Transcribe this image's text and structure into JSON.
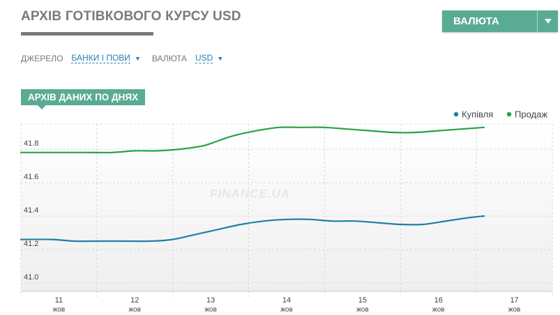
{
  "header": {
    "title": "АРХІВ ГОТІВКОВОГО КУРСУ USD",
    "currency_button": "ВАЛЮТА",
    "accent_color": "#5aab94"
  },
  "filters": {
    "source_label": "ДЖЕРЕЛО",
    "source_value": "БАНКИ І ПОВИ",
    "currency_label": "ВАЛЮТА",
    "currency_value": "USD"
  },
  "section_tag": "АРХІВ ДАНИХ ПО ДНЯХ",
  "watermark": "FINANCE.UA",
  "chart_data": {
    "type": "line",
    "x_labels": [
      {
        "day": "11",
        "month": "жов"
      },
      {
        "day": "12",
        "month": "жов"
      },
      {
        "day": "13",
        "month": "жов"
      },
      {
        "day": "14",
        "month": "жов"
      },
      {
        "day": "15",
        "month": "жов"
      },
      {
        "day": "16",
        "month": "жов"
      },
      {
        "day": "17",
        "month": "жов"
      }
    ],
    "x_range": [
      10.5,
      17.5
    ],
    "ylim": [
      40.95,
      41.95
    ],
    "yticks": [
      "41.0",
      "41.2",
      "41.4",
      "41.6",
      "41.8"
    ],
    "grid": true,
    "legend_position": "top-right",
    "series": [
      {
        "name": "Купівля",
        "color": "#1f7fa6",
        "x": [
          10.5,
          10.9,
          11.2,
          11.5,
          11.8,
          12.2,
          12.5,
          12.8,
          13.1,
          13.4,
          13.7,
          14.0,
          14.3,
          14.6,
          14.9,
          15.2,
          15.5,
          15.8,
          16.1,
          16.4,
          16.6
        ],
        "y": [
          41.26,
          41.26,
          41.25,
          41.25,
          41.25,
          41.25,
          41.26,
          41.29,
          41.32,
          41.35,
          41.37,
          41.38,
          41.38,
          41.37,
          41.37,
          41.36,
          41.35,
          41.35,
          41.37,
          41.39,
          41.4
        ]
      },
      {
        "name": "Продаж",
        "color": "#27a343",
        "x": [
          10.5,
          11.0,
          11.4,
          11.7,
          12.0,
          12.3,
          12.6,
          12.9,
          13.1,
          13.3,
          13.6,
          13.9,
          14.2,
          14.5,
          14.8,
          15.1,
          15.4,
          15.7,
          16.0,
          16.3,
          16.6
        ],
        "y": [
          41.78,
          41.78,
          41.78,
          41.78,
          41.79,
          41.79,
          41.8,
          41.82,
          41.85,
          41.88,
          41.91,
          41.93,
          41.93,
          41.93,
          41.92,
          41.91,
          41.9,
          41.9,
          41.91,
          41.92,
          41.93
        ]
      }
    ]
  }
}
